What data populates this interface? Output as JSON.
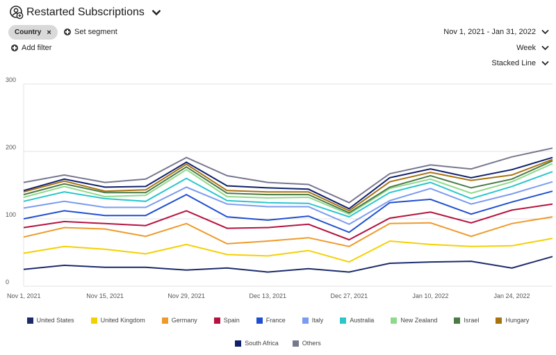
{
  "header": {
    "title": "Restarted Subscriptions",
    "icon": "user-gear-icon",
    "segment_chip": "Country",
    "chip_remove": "×",
    "set_segment": "Set segment",
    "add_filter": "Add filter"
  },
  "controls": {
    "date_range": "Nov 1, 2021 - Jan 31, 2022",
    "interval": "Week",
    "chart_type": "Stacked Line"
  },
  "chart_data": {
    "type": "line",
    "stacked": true,
    "title": "Restarted Subscriptions",
    "xlabel": "",
    "ylabel": "",
    "ylim": [
      0,
      300
    ],
    "yticks": [
      "0",
      "100",
      "200",
      "300"
    ],
    "grid": true,
    "legend_position": "bottom",
    "x": [
      "Nov 1, 2021",
      "Nov 8, 2021",
      "Nov 15, 2021",
      "Nov 22, 2021",
      "Nov 29, 2021",
      "Dec 6, 2021",
      "Dec 13, 2021",
      "Dec 20, 2021",
      "Dec 27, 2021",
      "Jan 3, 2022",
      "Jan 10, 2022",
      "Jan 17, 2022",
      "Jan 24, 2022",
      "Jan 31, 2022"
    ],
    "xtick_labels": [
      {
        "index": 0,
        "label": "Nov 1, 2021"
      },
      {
        "index": 2,
        "label": "Nov 15, 2021"
      },
      {
        "index": 4,
        "label": "Nov 29, 2021"
      },
      {
        "index": 6,
        "label": "Dec 13, 2021"
      },
      {
        "index": 8,
        "label": "Dec 27, 2021"
      },
      {
        "index": 10,
        "label": "Jan 10, 2022"
      },
      {
        "index": 12,
        "label": "Jan 24, 2022"
      }
    ],
    "series": [
      {
        "name": "United States",
        "color": "#1b2a6b",
        "values": [
          25,
          31,
          28,
          28,
          24,
          27,
          21,
          26,
          21,
          34,
          36,
          37,
          27,
          44
        ]
      },
      {
        "name": "United Kingdom",
        "color": "#f5d000",
        "values": [
          49,
          59,
          55,
          48,
          62,
          47,
          45,
          53,
          36,
          67,
          62,
          59,
          60,
          71
        ]
      },
      {
        "name": "Germany",
        "color": "#ee9a2a",
        "values": [
          73,
          87,
          85,
          74,
          93,
          63,
          67,
          72,
          59,
          93,
          94,
          74,
          93,
          103
        ]
      },
      {
        "name": "Spain",
        "color": "#b5123f",
        "values": [
          87,
          96,
          93,
          90,
          112,
          86,
          87,
          92,
          69,
          101,
          110,
          94,
          113,
          122
        ]
      },
      {
        "name": "France",
        "color": "#1f4fd1",
        "values": [
          100,
          112,
          105,
          105,
          136,
          103,
          98,
          104,
          80,
          124,
          129,
          107,
          125,
          141
        ]
      },
      {
        "name": "Italy",
        "color": "#7b9bf0",
        "values": [
          116,
          126,
          117,
          117,
          147,
          122,
          118,
          118,
          92,
          127,
          145,
          122,
          137,
          155
        ]
      },
      {
        "name": "Australia",
        "color": "#2ac6cc",
        "values": [
          126,
          140,
          130,
          126,
          160,
          127,
          124,
          123,
          103,
          139,
          154,
          130,
          148,
          170
        ]
      },
      {
        "name": "New Zealand",
        "color": "#8fd98a",
        "values": [
          132,
          148,
          133,
          135,
          173,
          133,
          131,
          132,
          107,
          145,
          159,
          138,
          155,
          182
        ]
      },
      {
        "name": "Israel",
        "color": "#4a7a45",
        "values": [
          136,
          152,
          139,
          139,
          177,
          138,
          136,
          136,
          109,
          147,
          164,
          146,
          159,
          186
        ]
      },
      {
        "name": "Hungary",
        "color": "#a8720e",
        "values": [
          140,
          156,
          141,
          143,
          181,
          142,
          140,
          140,
          112,
          155,
          169,
          157,
          165,
          188
        ]
      },
      {
        "name": "South Africa",
        "color": "#0f1f6b",
        "values": [
          142,
          159,
          147,
          148,
          184,
          149,
          146,
          144,
          115,
          161,
          174,
          161,
          173,
          191
        ]
      },
      {
        "name": "Others",
        "color": "#77778f",
        "values": [
          154,
          165,
          154,
          159,
          191,
          164,
          154,
          151,
          124,
          167,
          180,
          174,
          192,
          205
        ]
      }
    ]
  }
}
